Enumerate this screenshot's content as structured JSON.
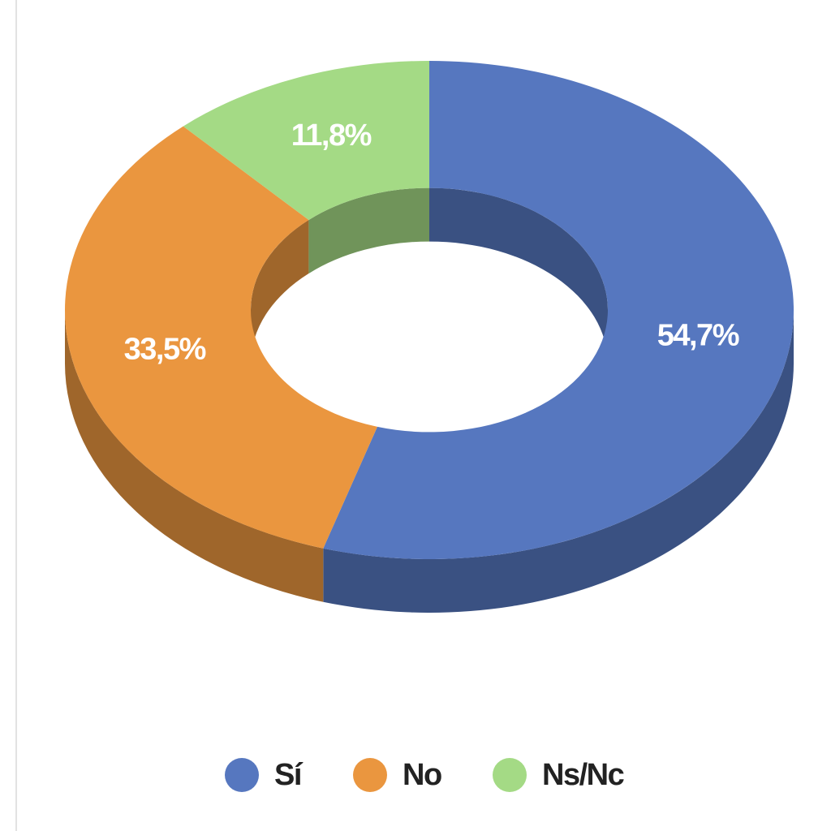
{
  "chart_data": {
    "type": "pie",
    "categories": [
      "Sí",
      "No",
      "Ns/Nc"
    ],
    "values": [
      54.7,
      33.5,
      11.8
    ],
    "value_labels": [
      "54,7%",
      "33,5%",
      "11,8%"
    ],
    "colors": [
      "#5677bf",
      "#ea963f",
      "#a4da85"
    ]
  }
}
